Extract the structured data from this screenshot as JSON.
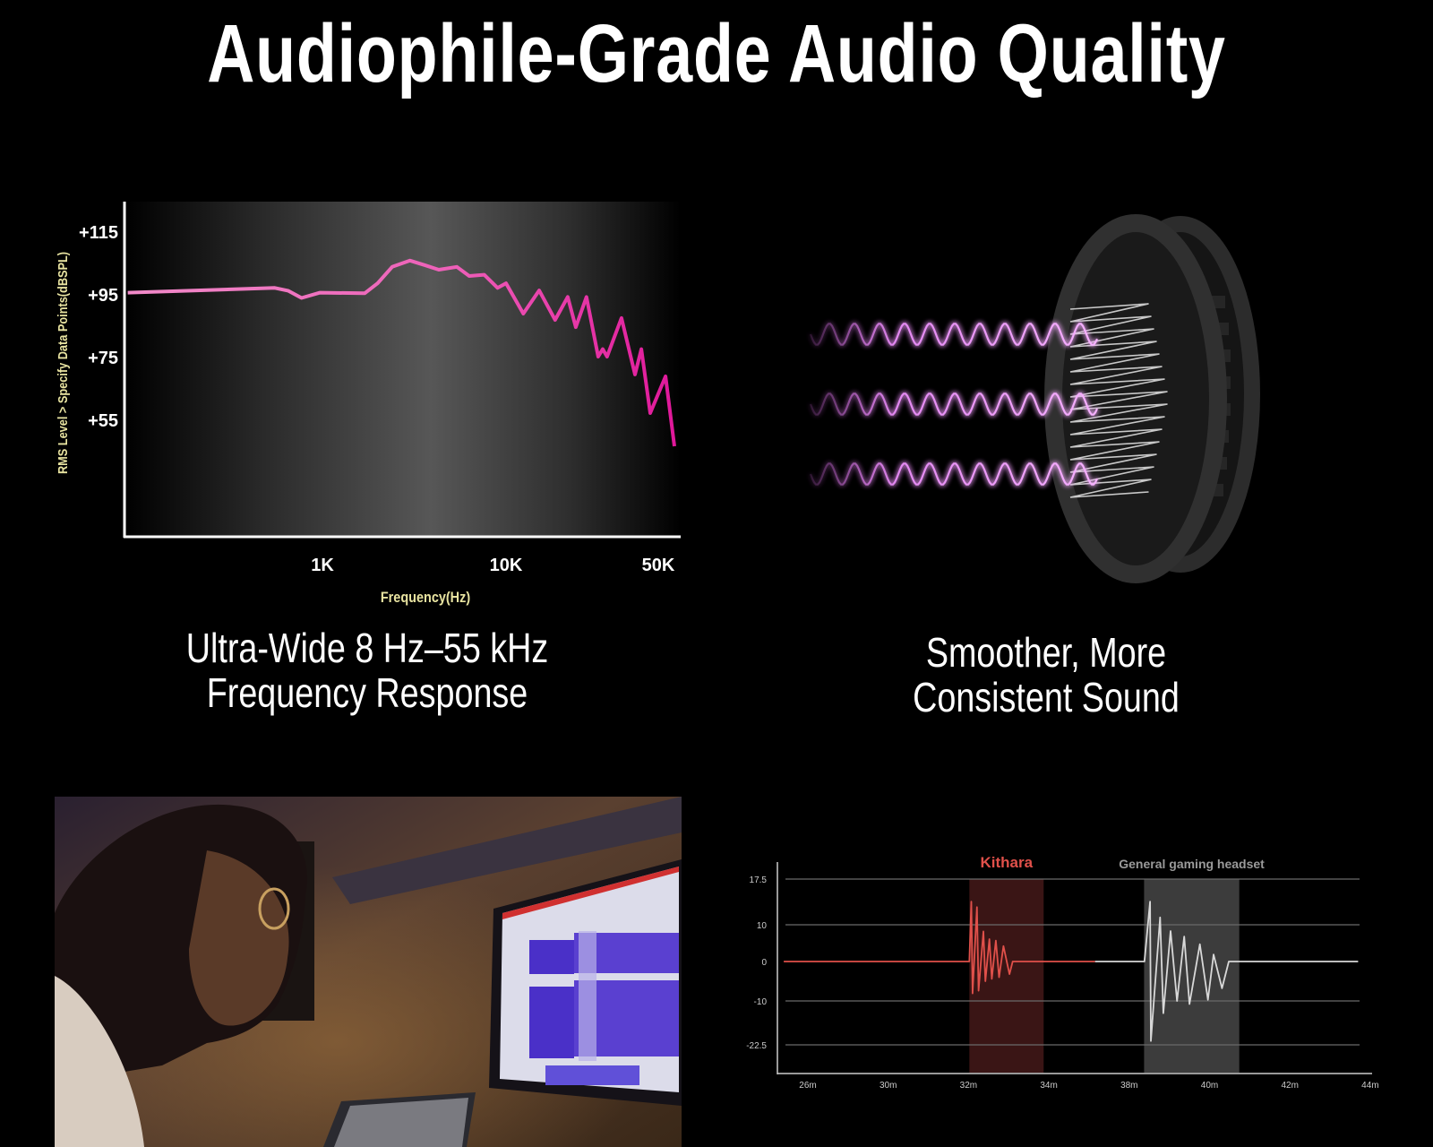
{
  "title": "Audiophile-Grade Audio Quality",
  "features": [
    {
      "line1": "Ultra-Wide 8 Hz–55 kHz",
      "line2": "Frequency Response"
    },
    {
      "line1": "Smoother, More",
      "line2": "Consistent Sound"
    }
  ],
  "colors": {
    "background": "#000000",
    "response_curve_start": "#f08ac8",
    "response_curve_end": "#e0189a",
    "axis_label": "#e8e3a0",
    "kithara": "#e0504a",
    "kithara_band": "#3a1515",
    "general": "#d8d8d8",
    "general_band": "#3c3c3c",
    "wave_glow": "#e060f0"
  },
  "chart_data": [
    {
      "type": "line",
      "title": "",
      "xlabel": "Frequency(Hz)",
      "ylabel": "RMS Level > Specify Data Points(dBSPL)",
      "x_scale": "log",
      "grid": false,
      "ylim": [
        18,
        125
      ],
      "yticks": [
        {
          "label": "+115",
          "value": 115
        },
        {
          "label": "+95",
          "value": 95
        },
        {
          "label": "+75",
          "value": 75
        },
        {
          "label": "+55",
          "value": 55
        }
      ],
      "xticks": [
        {
          "label": "1K",
          "value": 1000
        },
        {
          "label": "10K",
          "value": 10000
        },
        {
          "label": "50K",
          "value": 50000
        }
      ],
      "series": [
        {
          "x": [
            87,
            550,
            650,
            770,
            970,
            1700,
            2000,
            2400,
            3000,
            3600,
            4300,
            5400,
            6300,
            7600,
            9000,
            10000,
            12000,
            14200,
            16800,
            19200,
            20900,
            23400,
            26500,
            27800,
            29100,
            33900,
            39100,
            41800,
            45900,
            54000,
            59300
          ],
          "y": [
            95.7,
            97.2,
            96.3,
            94.0,
            95.7,
            95.5,
            98.7,
            103.9,
            105.9,
            104.5,
            103.0,
            103.9,
            101.0,
            101.4,
            97.2,
            98.7,
            89.0,
            96.4,
            87.0,
            94.3,
            84.7,
            94.3,
            75.3,
            77.7,
            75.3,
            87.6,
            69.6,
            77.7,
            57.3,
            69.0,
            46.7
          ]
        }
      ]
    },
    {
      "type": "line",
      "title": "",
      "xlabel": "",
      "ylabel": "",
      "grid": true,
      "yticks": [
        {
          "label": "17.5",
          "value": 17.5
        },
        {
          "label": "10",
          "value": 10
        },
        {
          "label": "0",
          "value": 0
        },
        {
          "label": "-10",
          "value": -10
        },
        {
          "label": "-22.5",
          "value": -22.5
        }
      ],
      "xticks": [
        {
          "label": "26m",
          "value": 26
        },
        {
          "label": "30m",
          "value": 30
        },
        {
          "label": "32m",
          "value": 32
        },
        {
          "label": "34m",
          "value": 34
        },
        {
          "label": "38m",
          "value": 38
        },
        {
          "label": "40m",
          "value": 40
        },
        {
          "label": "42m",
          "value": 42
        },
        {
          "label": "44m",
          "value": 44
        }
      ],
      "series": [
        {
          "name": "Kithara",
          "band": [
            32.02,
            33.87
          ],
          "x": [
            24.8,
            32.02,
            32.07,
            32.1,
            32.21,
            32.25,
            32.37,
            32.42,
            32.52,
            32.58,
            32.68,
            32.76,
            32.87,
            33.02,
            33.1,
            36.3
          ],
          "y": [
            0,
            0,
            13.8,
            -8.1,
            12.9,
            -7.4,
            8.2,
            -5.0,
            6.1,
            -4.4,
            5.7,
            -4.0,
            4.2,
            -3.2,
            0,
            0
          ]
        },
        {
          "name": "General gaming headset",
          "band": [
            38.37,
            40.74
          ],
          "x": [
            36.3,
            38.38,
            38.52,
            38.54,
            38.77,
            38.85,
            39.03,
            39.19,
            39.37,
            39.5,
            39.76,
            39.96,
            40.1,
            40.31,
            40.48,
            43.7
          ],
          "y": [
            0,
            0,
            13.8,
            -21.4,
            11.2,
            -13.5,
            8.3,
            -10.0,
            6.8,
            -10.9,
            4.7,
            -9.7,
            1.9,
            -6.8,
            0,
            0
          ]
        }
      ]
    }
  ]
}
